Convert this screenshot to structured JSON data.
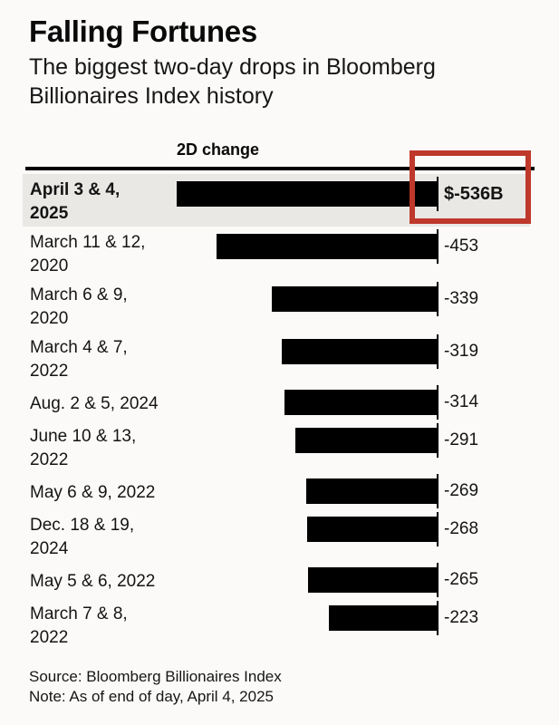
{
  "colors": {
    "background": "#fbfaf8",
    "text": "#111111",
    "bar": "#000000",
    "axis_rule": "#000000",
    "highlight_row_background": "#e9e8e5",
    "annotation_red": "#be382b"
  },
  "header": {
    "title": "Falling Fortunes",
    "subtitle_line1": "The biggest two-day drops in Bloomberg",
    "subtitle_line2": "Billionaires Index history"
  },
  "chart_data": {
    "type": "bar",
    "orientation": "horizontal",
    "title": "Falling Fortunes",
    "subtitle": "The biggest two-day drops in Bloomberg Billionaires Index history",
    "column_header": "2D change",
    "value_unit": "USD billions",
    "axis_min": -536,
    "axis_max": 0,
    "grid": false,
    "legend": false,
    "categories": [
      "April 3 & 4, 2025",
      "March 11 & 12, 2020",
      "March 6 & 9, 2020",
      "March 4 & 7, 2022",
      "Aug. 2 & 5, 2024",
      "June 10 & 13, 2022",
      "May 6 & 9, 2022",
      "Dec. 18 & 19, 2024",
      "May 5 & 6, 2022",
      "March 7 & 8, 2022"
    ],
    "values": [
      -536,
      -453,
      -339,
      -319,
      -314,
      -291,
      -269,
      -268,
      -265,
      -223
    ],
    "rows": [
      {
        "label_lines": [
          "April 3 & 4,",
          "2025"
        ],
        "value": -536,
        "display_value": "$-536B",
        "highlighted": true,
        "annotated": true
      },
      {
        "label_lines": [
          "March 11 & 12,",
          "2020"
        ],
        "value": -453,
        "display_value": "-453",
        "highlighted": false,
        "annotated": false
      },
      {
        "label_lines": [
          "March 6 & 9,",
          "2020"
        ],
        "value": -339,
        "display_value": "-339",
        "highlighted": false,
        "annotated": false
      },
      {
        "label_lines": [
          "March 4 & 7,",
          "2022"
        ],
        "value": -319,
        "display_value": "-319",
        "highlighted": false,
        "annotated": false
      },
      {
        "label_lines": [
          "Aug. 2 & 5, 2024"
        ],
        "value": -314,
        "display_value": "-314",
        "highlighted": false,
        "annotated": false
      },
      {
        "label_lines": [
          "June 10 & 13,",
          "2022"
        ],
        "value": -291,
        "display_value": "-291",
        "highlighted": false,
        "annotated": false
      },
      {
        "label_lines": [
          "May 6 & 9, 2022"
        ],
        "value": -269,
        "display_value": "-269",
        "highlighted": false,
        "annotated": false
      },
      {
        "label_lines": [
          "Dec. 18 & 19,",
          "2024"
        ],
        "value": -268,
        "display_value": "-268",
        "highlighted": false,
        "annotated": false
      },
      {
        "label_lines": [
          "May 5 & 6, 2022"
        ],
        "value": -265,
        "display_value": "-265",
        "highlighted": false,
        "annotated": false
      },
      {
        "label_lines": [
          "March 7 & 8,",
          "2022"
        ],
        "value": -223,
        "display_value": "-223",
        "highlighted": false,
        "annotated": false
      }
    ],
    "annotation": {
      "shape": "rectangle",
      "color": "#be382b",
      "marks": "$-536B value for April 3 & 4, 2025"
    }
  },
  "footer": {
    "source": "Source: Bloomberg Billionaires Index",
    "note": "Note: As of end of day, April 4, 2025"
  }
}
